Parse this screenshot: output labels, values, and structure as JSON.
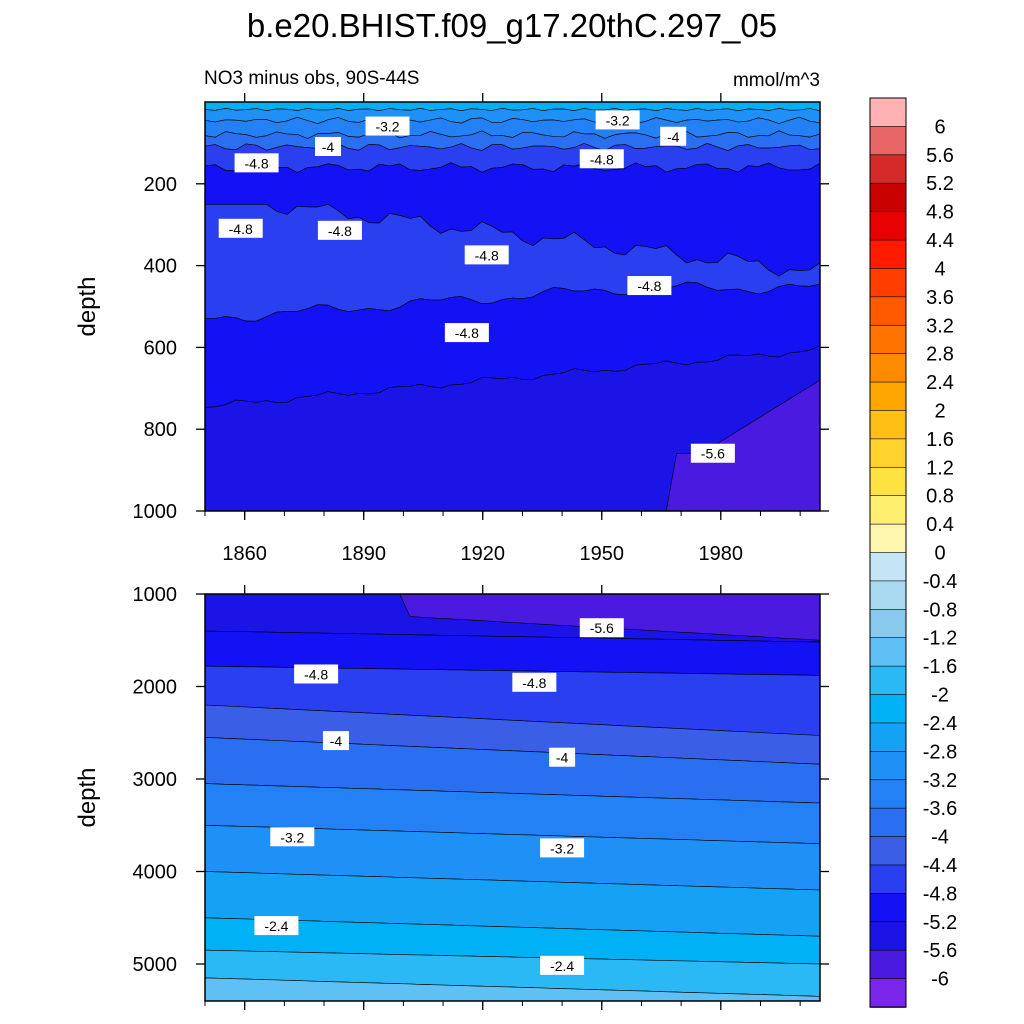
{
  "chart_data": {
    "type": "contour",
    "title": "b.e20.BHIST.f09_g17.20thC.297_05",
    "subtitle_left": "NO3 minus obs, 90S-44S",
    "subtitle_right": "mmol/m^3",
    "xlabel": "",
    "xlim": [
      1850,
      2005
    ],
    "xticks": [
      1860,
      1890,
      1920,
      1950,
      1980
    ],
    "panels": [
      {
        "name": "upper",
        "ylabel": "depth",
        "ylim": [
          0,
          1000
        ],
        "yticks": [
          200,
          400,
          600,
          800,
          1000
        ],
        "contour_labels": [
          {
            "text": "-3.2",
            "x": 1896,
            "y": 60
          },
          {
            "text": "-3.2",
            "x": 1954,
            "y": 45
          },
          {
            "text": "-4",
            "x": 1968,
            "y": 85
          },
          {
            "text": "-4",
            "x": 1881,
            "y": 110
          },
          {
            "text": "-4.8",
            "x": 1863,
            "y": 150
          },
          {
            "text": "-4.8",
            "x": 1950,
            "y": 140
          },
          {
            "text": "-4.8",
            "x": 1859,
            "y": 310
          },
          {
            "text": "-4.8",
            "x": 1884,
            "y": 315
          },
          {
            "text": "-4.8",
            "x": 1921,
            "y": 375
          },
          {
            "text": "-4.8",
            "x": 1962,
            "y": 450
          },
          {
            "text": "-4.8",
            "x": 1916,
            "y": 565
          },
          {
            "text": "-5.6",
            "x": 1978,
            "y": 860
          }
        ]
      },
      {
        "name": "lower",
        "ylabel": "depth",
        "ylim": [
          1000,
          5400
        ],
        "yticks": [
          1000,
          2000,
          3000,
          4000,
          5000
        ],
        "contour_labels": [
          {
            "text": "-5.6",
            "x": 1950,
            "y": 1370
          },
          {
            "text": "-4.8",
            "x": 1878,
            "y": 1870
          },
          {
            "text": "-4.8",
            "x": 1933,
            "y": 1960
          },
          {
            "text": "-4",
            "x": 1883,
            "y": 2590
          },
          {
            "text": "-4",
            "x": 1940,
            "y": 2770
          },
          {
            "text": "-3.2",
            "x": 1872,
            "y": 3630
          },
          {
            "text": "-3.2",
            "x": 1940,
            "y": 3750
          },
          {
            "text": "-2.4",
            "x": 1868,
            "y": 4590
          },
          {
            "text": "-2.4",
            "x": 1940,
            "y": 5020
          }
        ]
      }
    ],
    "colorbar": {
      "labels": [
        "6",
        "5.6",
        "5.2",
        "4.8",
        "4.4",
        "4",
        "3.6",
        "3.2",
        "2.8",
        "2.4",
        "2",
        "1.6",
        "1.2",
        "0.8",
        "0.4",
        "0",
        "-0.4",
        "-0.8",
        "-1.2",
        "-1.6",
        "-2",
        "-2.4",
        "-2.8",
        "-3.2",
        "-3.6",
        "-4",
        "-4.4",
        "-4.8",
        "-5.2",
        "-5.6",
        "-6"
      ],
      "colors": [
        "#ffb2b3",
        "#e86465",
        "#d42a2a",
        "#c80000",
        "#e80000",
        "#ff1a00",
        "#ff3e00",
        "#ff5a00",
        "#ff7300",
        "#ff8c00",
        "#ffa600",
        "#ffbf14",
        "#ffd22d",
        "#ffe141",
        "#ffef6e",
        "#fff5af",
        "#c4e5f5",
        "#a8d9f0",
        "#8ac9ee",
        "#5fc0f5",
        "#2ab9f5",
        "#00b2f5",
        "#15a2f5",
        "#1f90f5",
        "#2380f5",
        "#2a6ff0",
        "#3a5ee6",
        "#2a40f0",
        "#1212f5",
        "#1a14e6",
        "#4a1ae0",
        "#7a25eb"
      ]
    },
    "depth_profile_by_band": {
      "upper_top_mean": -3.2,
      "upper_middle_mean": -4.8,
      "upper_bottom_mean": -5.2,
      "lower_top_mean": -5.6,
      "lower_bottom_mean": -2.0
    }
  }
}
